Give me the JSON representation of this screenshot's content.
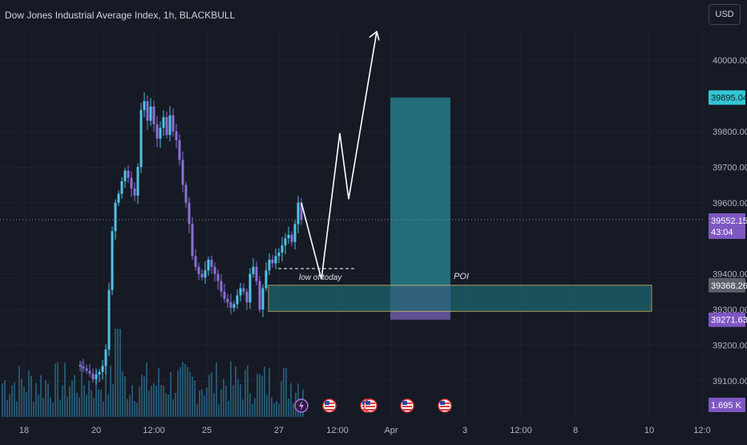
{
  "header": {
    "title": "Dow Jones Industrial Average Index, 1h, BLACKBULL",
    "currency_label": "USD"
  },
  "colors": {
    "background": "#161a25",
    "grid": "#1f2330",
    "candle": "#4fc3e6",
    "candle_down": "#8c6fd6",
    "volume": "#2a6a87",
    "zone_fill": "#1d6a72",
    "zone_border": "#e6d16a",
    "target_fill": "#26828f",
    "stop_fill": "#6d5aa8",
    "forecast_line": "#ffffff",
    "price_badge_cyan": "#33c5d4",
    "price_badge_purple": "#7e57c2",
    "price_badge_gray": "#5d606b"
  },
  "icons": [
    "lightning-event-icon",
    "us-flag-icon"
  ],
  "chart_data": {
    "type": "candlestick",
    "title": "Dow Jones Industrial Average Index, 1h, BLACKBULL",
    "y_axis": {
      "ticks": [
        "40000.00",
        "39800.00",
        "39700.00",
        "39600.00",
        "39400.00",
        "39300.00",
        "39200.00",
        "39100.00"
      ],
      "range": [
        39010,
        40140
      ]
    },
    "x_axis": {
      "ticks": [
        "18",
        "20",
        "12:00",
        "25",
        "27",
        "12:00",
        "Apr",
        "3",
        "12:00",
        "8",
        "10",
        "12:0"
      ]
    },
    "price_badges": [
      {
        "label": "39895.04",
        "value": 39895.04,
        "style": "cyan"
      },
      {
        "label": "39552.15",
        "sub": "43:04",
        "value": 39552.15,
        "style": "purple"
      },
      {
        "label": "39368.26",
        "value": 39368.26,
        "style": "gray"
      },
      {
        "label": "39271.63",
        "value": 39271.63,
        "style": "purple"
      },
      {
        "label": "1.695 K",
        "style": "purple-volume"
      }
    ],
    "current_price": 39552.15,
    "zones": [
      {
        "name": "poi-zone",
        "label": "POI",
        "top": 39368.26,
        "bottom": 39295
      },
      {
        "name": "target-box",
        "top": 39895.04,
        "bottom": 39271.63
      }
    ],
    "annotations": [
      {
        "text": "low of today",
        "price": 39415
      }
    ],
    "forecast_path": [
      39600,
      39385,
      39795,
      39610,
      40080
    ],
    "candles_close": [
      39140,
      39135,
      39128,
      39120,
      39105,
      39118,
      39125,
      39142,
      39188,
      39355,
      39520,
      39600,
      39625,
      39660,
      39690,
      39670,
      39640,
      39620,
      39700,
      39860,
      39885,
      39830,
      39870,
      39820,
      39780,
      39810,
      39840,
      39790,
      39845,
      39800,
      39775,
      39720,
      39650,
      39600,
      39540,
      39450,
      39420,
      39400,
      39390,
      39410,
      39440,
      39420,
      39400,
      39380,
      39350,
      39330,
      39320,
      39305,
      39315,
      39340,
      39360,
      39350,
      39320,
      39400,
      39420,
      39380,
      39300,
      39360,
      39410,
      39440,
      39430,
      39450,
      39460,
      39480,
      39500,
      39510,
      39490,
      39540,
      39600,
      39552
    ],
    "volume_caption": "1.695 K"
  }
}
